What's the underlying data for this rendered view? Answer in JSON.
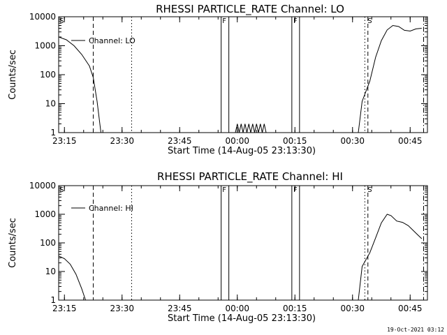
{
  "chart_data": [
    {
      "type": "line",
      "title": "RHESSI PARTICLE_RATE Channel: LO",
      "xlabel": "Start Time (14-Aug-05 23:13:30)",
      "ylabel": "Counts/sec",
      "y_scale": "log",
      "ylim": [
        1,
        10000
      ],
      "xlim": [
        0,
        96
      ],
      "x_units": "minutes after 14-Aug-05 23:13:30",
      "xticks": [
        {
          "x": 1.5,
          "label": "23:15"
        },
        {
          "x": 16.5,
          "label": "23:30"
        },
        {
          "x": 31.5,
          "label": "23:45"
        },
        {
          "x": 46.5,
          "label": "00:00"
        },
        {
          "x": 61.5,
          "label": "00:15"
        },
        {
          "x": 76.5,
          "label": "00:30"
        },
        {
          "x": 91.5,
          "label": "00:45"
        }
      ],
      "yticks": [
        {
          "v": 1,
          "label": "1"
        },
        {
          "v": 10,
          "label": "10"
        },
        {
          "v": 100,
          "label": "100"
        },
        {
          "v": 1000,
          "label": "1000"
        },
        {
          "v": 10000,
          "label": "10000"
        }
      ],
      "legend": {
        "label": "Channel: LO",
        "position": "top-left"
      },
      "series": [
        {
          "name": "Channel: LO",
          "segments": [
            [
              [
                0,
                2000
              ],
              [
                2,
                1600
              ],
              [
                4,
                1000
              ],
              [
                6,
                500
              ],
              [
                8,
                200
              ],
              [
                9,
                80
              ],
              [
                10,
                12
              ],
              [
                11,
                1
              ]
            ],
            [
              [
                46,
                1
              ],
              [
                46.5,
                2
              ],
              [
                47,
                1
              ],
              [
                47.5,
                2
              ],
              [
                48,
                1
              ],
              [
                48.5,
                2
              ],
              [
                49,
                1
              ],
              [
                49.5,
                2
              ],
              [
                50,
                1
              ],
              [
                50.5,
                2
              ],
              [
                51,
                1
              ],
              [
                51.5,
                2
              ],
              [
                52,
                1
              ],
              [
                52.5,
                2
              ],
              [
                53,
                1
              ],
              [
                53.5,
                2
              ],
              [
                54,
                1
              ]
            ],
            [
              [
                78,
                1
              ],
              [
                79,
                12
              ],
              [
                81,
                60
              ],
              [
                82.5,
                400
              ],
              [
                84,
                1500
              ],
              [
                85.5,
                3500
              ],
              [
                87,
                5000
              ],
              [
                88.5,
                4600
              ],
              [
                90,
                3400
              ],
              [
                91.5,
                3200
              ],
              [
                93,
                3800
              ],
              [
                94.5,
                4000
              ]
            ]
          ]
        }
      ],
      "markers": [
        {
          "x": 0.2,
          "label": "S"
        },
        {
          "x": 42.6,
          "label": "F"
        },
        {
          "x": 61.1,
          "label": "F"
        },
        {
          "x": 80.4,
          "label": "S"
        }
      ],
      "vlines": [
        {
          "x": 9,
          "style": "dashed"
        },
        {
          "x": 19,
          "style": "dotted"
        },
        {
          "x": 42.3,
          "style": "solid"
        },
        {
          "x": 44.3,
          "style": "solid"
        },
        {
          "x": 60.7,
          "style": "solid"
        },
        {
          "x": 62.7,
          "style": "solid"
        },
        {
          "x": 79.7,
          "style": "dotted"
        },
        {
          "x": 80.5,
          "style": "dashed"
        },
        {
          "x": 95,
          "style": "dashdot"
        }
      ]
    },
    {
      "type": "line",
      "title": "RHESSI PARTICLE_RATE Channel: HI",
      "xlabel": "Start Time (14-Aug-05 23:13:30)",
      "ylabel": "Counts/sec",
      "y_scale": "log",
      "ylim": [
        1,
        10000
      ],
      "xlim": [
        0,
        96
      ],
      "x_units": "minutes after 14-Aug-05 23:13:30",
      "xticks": [
        {
          "x": 1.5,
          "label": "23:15"
        },
        {
          "x": 16.5,
          "label": "23:30"
        },
        {
          "x": 31.5,
          "label": "23:45"
        },
        {
          "x": 46.5,
          "label": "00:00"
        },
        {
          "x": 61.5,
          "label": "00:15"
        },
        {
          "x": 76.5,
          "label": "00:30"
        },
        {
          "x": 91.5,
          "label": "00:45"
        }
      ],
      "yticks": [
        {
          "v": 1,
          "label": "1"
        },
        {
          "v": 10,
          "label": "10"
        },
        {
          "v": 100,
          "label": "100"
        },
        {
          "v": 1000,
          "label": "1000"
        },
        {
          "v": 10000,
          "label": "10000"
        }
      ],
      "legend": {
        "label": "Channel: HI",
        "position": "top-left"
      },
      "series": [
        {
          "name": "Channel: HI",
          "segments": [
            [
              [
                0,
                35
              ],
              [
                1.5,
                28
              ],
              [
                3,
                18
              ],
              [
                4.5,
                8
              ],
              [
                6,
                2.5
              ],
              [
                7,
                1
              ]
            ],
            [
              [
                78,
                1
              ],
              [
                79,
                15
              ],
              [
                81,
                45
              ],
              [
                82.5,
                150
              ],
              [
                84,
                500
              ],
              [
                85.5,
                1000
              ],
              [
                86.5,
                900
              ],
              [
                88,
                580
              ],
              [
                89.5,
                520
              ],
              [
                91,
                400
              ],
              [
                93,
                220
              ],
              [
                94.5,
                140
              ]
            ]
          ]
        }
      ],
      "markers": [
        {
          "x": 0.2,
          "label": "S"
        },
        {
          "x": 42.6,
          "label": "F"
        },
        {
          "x": 61.1,
          "label": "F"
        },
        {
          "x": 80.4,
          "label": "S"
        }
      ],
      "vlines": [
        {
          "x": 9,
          "style": "dashed"
        },
        {
          "x": 19,
          "style": "dotted"
        },
        {
          "x": 42.3,
          "style": "solid"
        },
        {
          "x": 44.3,
          "style": "solid"
        },
        {
          "x": 60.7,
          "style": "solid"
        },
        {
          "x": 62.7,
          "style": "solid"
        },
        {
          "x": 79.7,
          "style": "dotted"
        },
        {
          "x": 80.5,
          "style": "dashed"
        },
        {
          "x": 95,
          "style": "dashdot"
        }
      ]
    }
  ],
  "footer": {
    "timestamp": "19-Oct-2021 03:12"
  }
}
